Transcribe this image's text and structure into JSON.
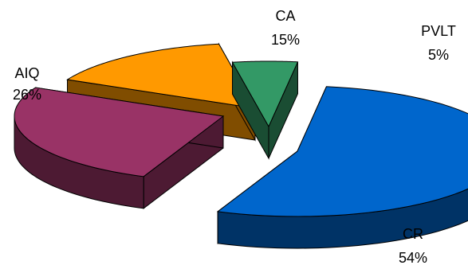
{
  "chart_data": {
    "type": "pie",
    "style": "3d-exploded",
    "categories": [
      "CR",
      "AIQ",
      "CA",
      "PVLT"
    ],
    "values": [
      54,
      26,
      15,
      5
    ],
    "labels": [
      "CR",
      "AIQ",
      "CA",
      "PVLT"
    ],
    "value_labels": [
      "54%",
      "26%",
      "15%",
      "5%"
    ],
    "colors": {
      "CR": {
        "top": "#0066CC",
        "side": "#003366"
      },
      "AIQ": {
        "top": "#993366",
        "side": "#4D1A33"
      },
      "CA": {
        "top": "#FF9900",
        "side": "#804D00"
      },
      "PVLT": {
        "top": "#339966",
        "side": "#1A4D33"
      }
    },
    "legend": "none",
    "title": ""
  }
}
